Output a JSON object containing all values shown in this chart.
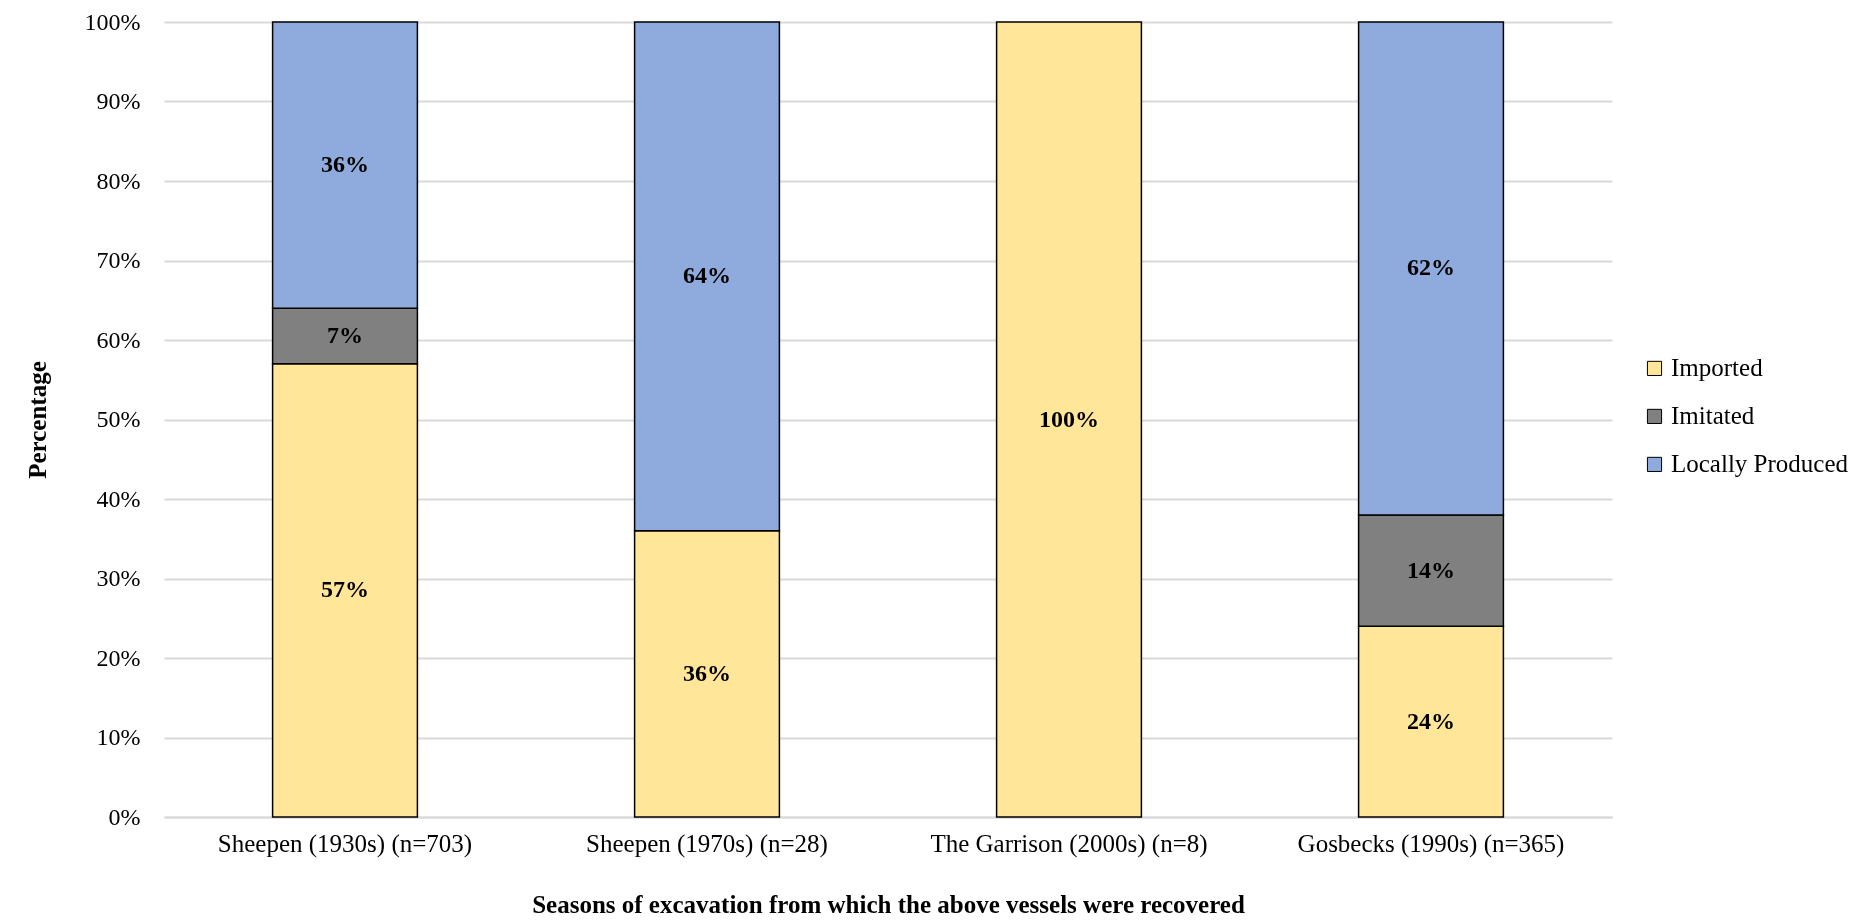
{
  "chart_data": {
    "type": "bar",
    "stacked": true,
    "xlabel": "Seasons of excavation from which the above vessels were recovered",
    "ylabel": "Percentage",
    "categories": [
      "Sheepen (1930s) (n=703)",
      "Sheepen (1970s) (n=28)",
      "The Garrison (2000s) (n=8)",
      "Gosbecks (1990s) (n=365)"
    ],
    "series": [
      {
        "name": "Imported",
        "color": "#ffe699",
        "values": [
          57,
          36,
          100,
          24
        ],
        "value_labels": [
          "57%",
          "36%",
          "100%",
          "24%"
        ]
      },
      {
        "name": "Imitated",
        "color": "#808080",
        "values": [
          7,
          null,
          null,
          14
        ],
        "value_labels": [
          "7%",
          null,
          null,
          "14%"
        ]
      },
      {
        "name": "Locally Produced",
        "color": "#8faadc",
        "values": [
          36,
          64,
          null,
          62
        ],
        "value_labels": [
          "36%",
          "64%",
          null,
          "62%"
        ]
      }
    ],
    "ylim": [
      0,
      100
    ],
    "yticks": [
      {
        "value": 0,
        "label": "0%"
      },
      {
        "value": 10,
        "label": "10%"
      },
      {
        "value": 20,
        "label": "20%"
      },
      {
        "value": 30,
        "label": "30%"
      },
      {
        "value": 40,
        "label": "40%"
      },
      {
        "value": 50,
        "label": "50%"
      },
      {
        "value": 60,
        "label": "60%"
      },
      {
        "value": 70,
        "label": "70%"
      },
      {
        "value": 80,
        "label": "80%"
      },
      {
        "value": 90,
        "label": "90%"
      },
      {
        "value": 100,
        "label": "100%"
      }
    ],
    "grid": "y",
    "legend": "right"
  }
}
